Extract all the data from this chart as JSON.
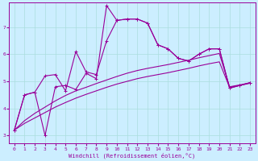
{
  "xlabel": "Windchill (Refroidissement éolien,°C)",
  "bg_color": "#cceeff",
  "line_color": "#990099",
  "grid_color": "#aadddd",
  "xlim": [
    -0.5,
    23.5
  ],
  "ylim": [
    2.7,
    7.9
  ],
  "xticks": [
    0,
    1,
    2,
    3,
    4,
    5,
    6,
    7,
    8,
    9,
    10,
    11,
    12,
    13,
    14,
    15,
    16,
    17,
    18,
    19,
    20,
    21,
    22,
    23
  ],
  "yticks": [
    3,
    4,
    5,
    6,
    7
  ],
  "lines": [
    {
      "x": [
        0,
        1,
        2,
        3,
        4,
        5,
        6,
        7,
        8,
        9,
        10,
        11,
        12,
        13,
        14,
        15,
        16,
        17,
        18,
        19,
        20,
        21,
        22,
        23
      ],
      "y": [
        3.2,
        4.5,
        4.6,
        3.0,
        4.8,
        4.85,
        4.7,
        5.3,
        5.1,
        7.8,
        7.25,
        7.3,
        7.3,
        7.15,
        6.35,
        6.2,
        5.85,
        5.75,
        6.0,
        6.2,
        6.2,
        4.75,
        4.85,
        4.95
      ],
      "marker": true
    },
    {
      "x": [
        0,
        1,
        2,
        3,
        4,
        5,
        6,
        7,
        8,
        9,
        10,
        11,
        12,
        13,
        14,
        15,
        16,
        17,
        18,
        19,
        20,
        21,
        22,
        23
      ],
      "y": [
        3.2,
        4.5,
        4.6,
        5.2,
        5.25,
        4.65,
        6.1,
        5.35,
        5.25,
        6.5,
        7.25,
        7.3,
        7.3,
        7.15,
        6.35,
        6.2,
        5.85,
        5.75,
        6.0,
        6.2,
        6.2,
        4.75,
        4.85,
        4.95
      ],
      "marker": true
    },
    {
      "x": [
        0,
        1,
        2,
        3,
        4,
        5,
        6,
        7,
        8,
        9,
        10,
        11,
        12,
        13,
        14,
        15,
        16,
        17,
        18,
        19,
        20,
        21,
        22,
        23
      ],
      "y": [
        3.2,
        3.45,
        3.65,
        3.85,
        4.05,
        4.22,
        4.38,
        4.52,
        4.65,
        4.78,
        4.9,
        5.0,
        5.1,
        5.18,
        5.25,
        5.32,
        5.4,
        5.48,
        5.57,
        5.65,
        5.72,
        4.78,
        4.85,
        4.93
      ],
      "marker": false
    },
    {
      "x": [
        0,
        1,
        2,
        3,
        4,
        5,
        6,
        7,
        8,
        9,
        10,
        11,
        12,
        13,
        14,
        15,
        16,
        17,
        18,
        19,
        20,
        21,
        22,
        23
      ],
      "y": [
        3.2,
        3.55,
        3.82,
        4.05,
        4.28,
        4.48,
        4.65,
        4.78,
        4.92,
        5.05,
        5.18,
        5.3,
        5.4,
        5.48,
        5.55,
        5.62,
        5.7,
        5.78,
        5.87,
        5.95,
        6.03,
        4.8,
        4.87,
        4.95
      ],
      "marker": false
    }
  ]
}
